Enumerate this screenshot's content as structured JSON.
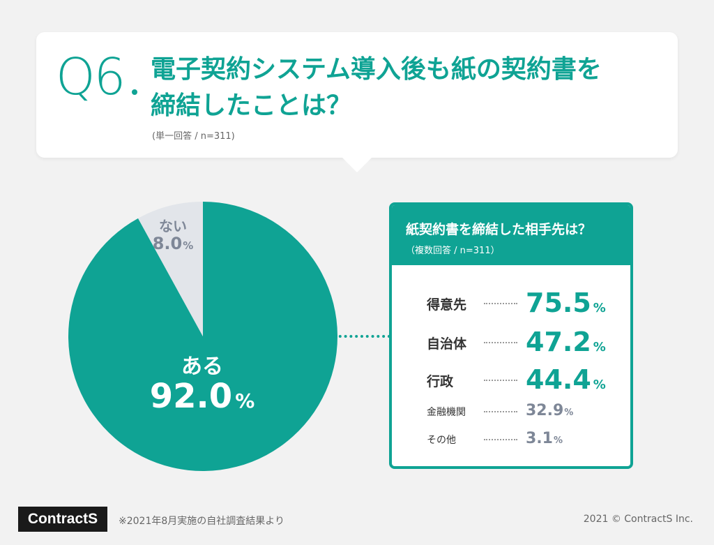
{
  "question": {
    "number": "Q6",
    "title_line1": "電子契約システム導入後も紙の契約書を",
    "title_line2": "締結したことは？",
    "sample": "(単一回答 / n=311)"
  },
  "chart_data": [
    {
      "type": "pie",
      "title": "",
      "slices": [
        {
          "label": "ある",
          "value": 92.0,
          "display": "92.0",
          "unit": "%",
          "color": "#0fa394"
        },
        {
          "label": "ない",
          "value": 8.0,
          "display": "8.0",
          "unit": "%",
          "color": "#e2e5ea"
        }
      ],
      "start": "12 o'clock, counterclockwise for ない"
    },
    {
      "type": "table",
      "title": "紙契約書を締結した相手先は？",
      "subtitle": "（複数回答 / n=311）",
      "rows": [
        {
          "label": "得意先",
          "value": "75.5",
          "unit": "%",
          "emphasis": true
        },
        {
          "label": "自治体",
          "value": "47.2",
          "unit": "%",
          "emphasis": true
        },
        {
          "label": "行政",
          "value": "44.4",
          "unit": "%",
          "emphasis": true
        },
        {
          "label": "金融機関",
          "value": "32.9",
          "unit": "%",
          "emphasis": false
        },
        {
          "label": "その他",
          "value": "3.1",
          "unit": "%",
          "emphasis": false
        }
      ]
    }
  ],
  "footer": {
    "logo": "ContractS",
    "note": "※2021年8月実施の自社調査結果より",
    "copyright": "2021 © ContractS Inc."
  }
}
